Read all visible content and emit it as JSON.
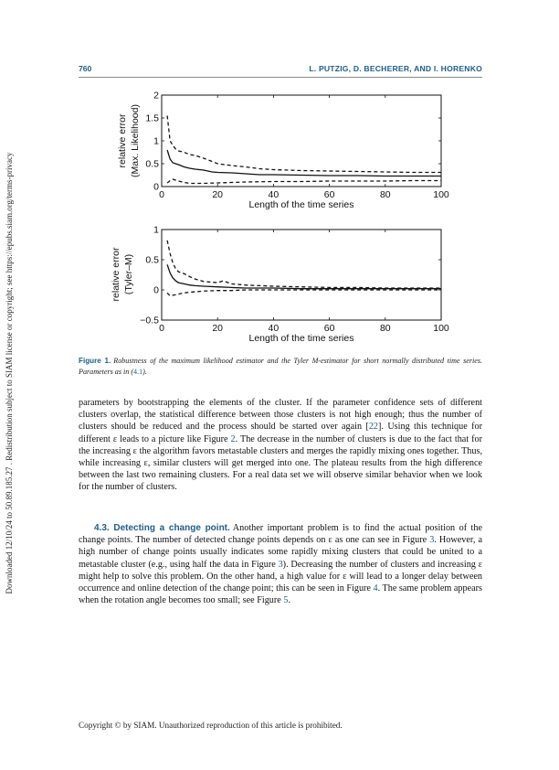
{
  "sidebar_text": "Downloaded 12/10/24 to 50.89.185.27 . Redistribution subject to SIAM license or copyright; see https://epubs.siam.org/terms-privacy",
  "header": {
    "page_number": "760",
    "authors": "L. PUTZIG, D. BECHERER, AND I. HORENKO"
  },
  "chart_data": [
    {
      "type": "line",
      "ylabel_line1": "relative error",
      "ylabel_line2": "(Max. Likelihood)",
      "xlabel": "Length of the time series",
      "xlim": [
        0,
        100
      ],
      "ylim": [
        0,
        2
      ],
      "xticks": [
        "0",
        "20",
        "40",
        "60",
        "80",
        "100"
      ],
      "yticks": [
        "0",
        "0.5",
        "1",
        "1.5",
        "2"
      ],
      "grid": false,
      "series": [
        {
          "style": "solid",
          "x": [
            2,
            3,
            4,
            5,
            6,
            8,
            10,
            12,
            15,
            18,
            20,
            25,
            30,
            35,
            40,
            50,
            60,
            70,
            80,
            90,
            100
          ],
          "y": [
            0.8,
            0.6,
            0.52,
            0.5,
            0.48,
            0.43,
            0.4,
            0.38,
            0.36,
            0.32,
            0.31,
            0.3,
            0.28,
            0.26,
            0.26,
            0.25,
            0.24,
            0.24,
            0.23,
            0.23,
            0.23
          ]
        },
        {
          "style": "dashed",
          "x": [
            2,
            3,
            4,
            5,
            6,
            8,
            10,
            12,
            15,
            18,
            20,
            25,
            30,
            35,
            40,
            50,
            60,
            70,
            80,
            90,
            100
          ],
          "y": [
            1.55,
            1.0,
            0.9,
            0.82,
            0.78,
            0.75,
            0.7,
            0.68,
            0.62,
            0.55,
            0.5,
            0.46,
            0.43,
            0.39,
            0.37,
            0.35,
            0.34,
            0.33,
            0.32,
            0.31,
            0.31
          ]
        },
        {
          "style": "dashed",
          "x": [
            2,
            3,
            4,
            5,
            6,
            8,
            10,
            12,
            15,
            20,
            25,
            30,
            40,
            50,
            60,
            70,
            80,
            90,
            100
          ],
          "y": [
            0.08,
            0.13,
            0.16,
            0.14,
            0.12,
            0.09,
            0.07,
            0.07,
            0.07,
            0.08,
            0.09,
            0.1,
            0.11,
            0.11,
            0.12,
            0.12,
            0.12,
            0.13,
            0.13
          ]
        }
      ]
    },
    {
      "type": "line",
      "ylabel_line1": "relative error",
      "ylabel_line2": "(Tyler–M)",
      "xlabel": "Length of the time series",
      "xlim": [
        0,
        100
      ],
      "ylim": [
        -0.5,
        1
      ],
      "xticks": [
        "0",
        "20",
        "40",
        "60",
        "80",
        "100"
      ],
      "yticks": [
        "−0.5",
        "0",
        "0.5",
        "1"
      ],
      "grid": false,
      "series": [
        {
          "style": "solid",
          "x": [
            2,
            3,
            4,
            5,
            6,
            8,
            10,
            12,
            15,
            20,
            25,
            30,
            40,
            50,
            60,
            70,
            80,
            90,
            100
          ],
          "y": [
            0.42,
            0.28,
            0.2,
            0.15,
            0.12,
            0.1,
            0.08,
            0.07,
            0.06,
            0.05,
            0.04,
            0.03,
            0.03,
            0.02,
            0.02,
            0.02,
            0.02,
            0.02,
            0.02
          ]
        },
        {
          "style": "dashed",
          "x": [
            2,
            3,
            4,
            5,
            6,
            8,
            10,
            12,
            15,
            20,
            22,
            25,
            30,
            40,
            50,
            60,
            70,
            80,
            90,
            100
          ],
          "y": [
            0.82,
            0.6,
            0.45,
            0.35,
            0.3,
            0.27,
            0.22,
            0.18,
            0.14,
            0.12,
            0.15,
            0.1,
            0.08,
            0.06,
            0.05,
            0.04,
            0.04,
            0.03,
            0.03,
            0.03
          ]
        },
        {
          "style": "dashed",
          "x": [
            2,
            3,
            4,
            5,
            6,
            8,
            10,
            12,
            15,
            20,
            25,
            30,
            40,
            50,
            60,
            70,
            80,
            90,
            100
          ],
          "y": [
            -0.05,
            -0.1,
            -0.09,
            -0.08,
            -0.07,
            -0.05,
            -0.04,
            -0.03,
            -0.02,
            -0.01,
            -0.01,
            0.0,
            0.0,
            0.0,
            0.0,
            0.0,
            0.0,
            0.0,
            0.0
          ]
        }
      ]
    }
  ],
  "caption": {
    "label": "Figure 1.",
    "text_before": "Robustness of the maximum likelihood estimator and the Tyler M-estimator for short normally distributed time series. Parameters as in (",
    "ref": "4.1",
    "text_after": ")."
  },
  "paragraph1": {
    "t1": "parameters by bootstrapping the elements of the cluster. If the parameter confidence sets of different clusters overlap, the statistical difference between those clusters is not high enough; thus the number of clusters should be reduced and the process should be started over again [",
    "ref_22": "22",
    "t2": "]. Using this technique for different ε leads to a picture like Figure ",
    "ref_fig2": "2",
    "t3": ". The decrease in the number of clusters is due to the fact that for the increasing ε the algorithm favors metastable clusters and merges the rapidly mixing ones together. Thus, while increasing ε, similar clusters will get merged into one. The plateau results from the high difference between the last two remaining clusters. For a real data set we will observe similar behavior when we look for the number of clusters."
  },
  "section": {
    "heading": "4.3. Detecting a change point.",
    "t1": "Another important problem is to find the actual position of the change points. The number of detected change points depends on ε as one can see in Figure ",
    "ref_fig3a": "3",
    "t2": ". However, a high number of change points usually indicates some rapidly mixing clusters that could be united to a metastable cluster (e.g., using half the data in Figure ",
    "ref_fig3b": "3",
    "t3": "). Decreasing the number of clusters and increasing ε might help to solve this problem. On the other hand, a high value for ε will lead to a longer delay between occurrence and online detection of the change point; this can be seen in Figure ",
    "ref_fig4": "4",
    "t4": ". The same problem appears when the rotation angle becomes too small; see Figure ",
    "ref_fig5": "5",
    "t5": "."
  },
  "footer": "Copyright © by SIAM. Unauthorized reproduction of this article is prohibited."
}
